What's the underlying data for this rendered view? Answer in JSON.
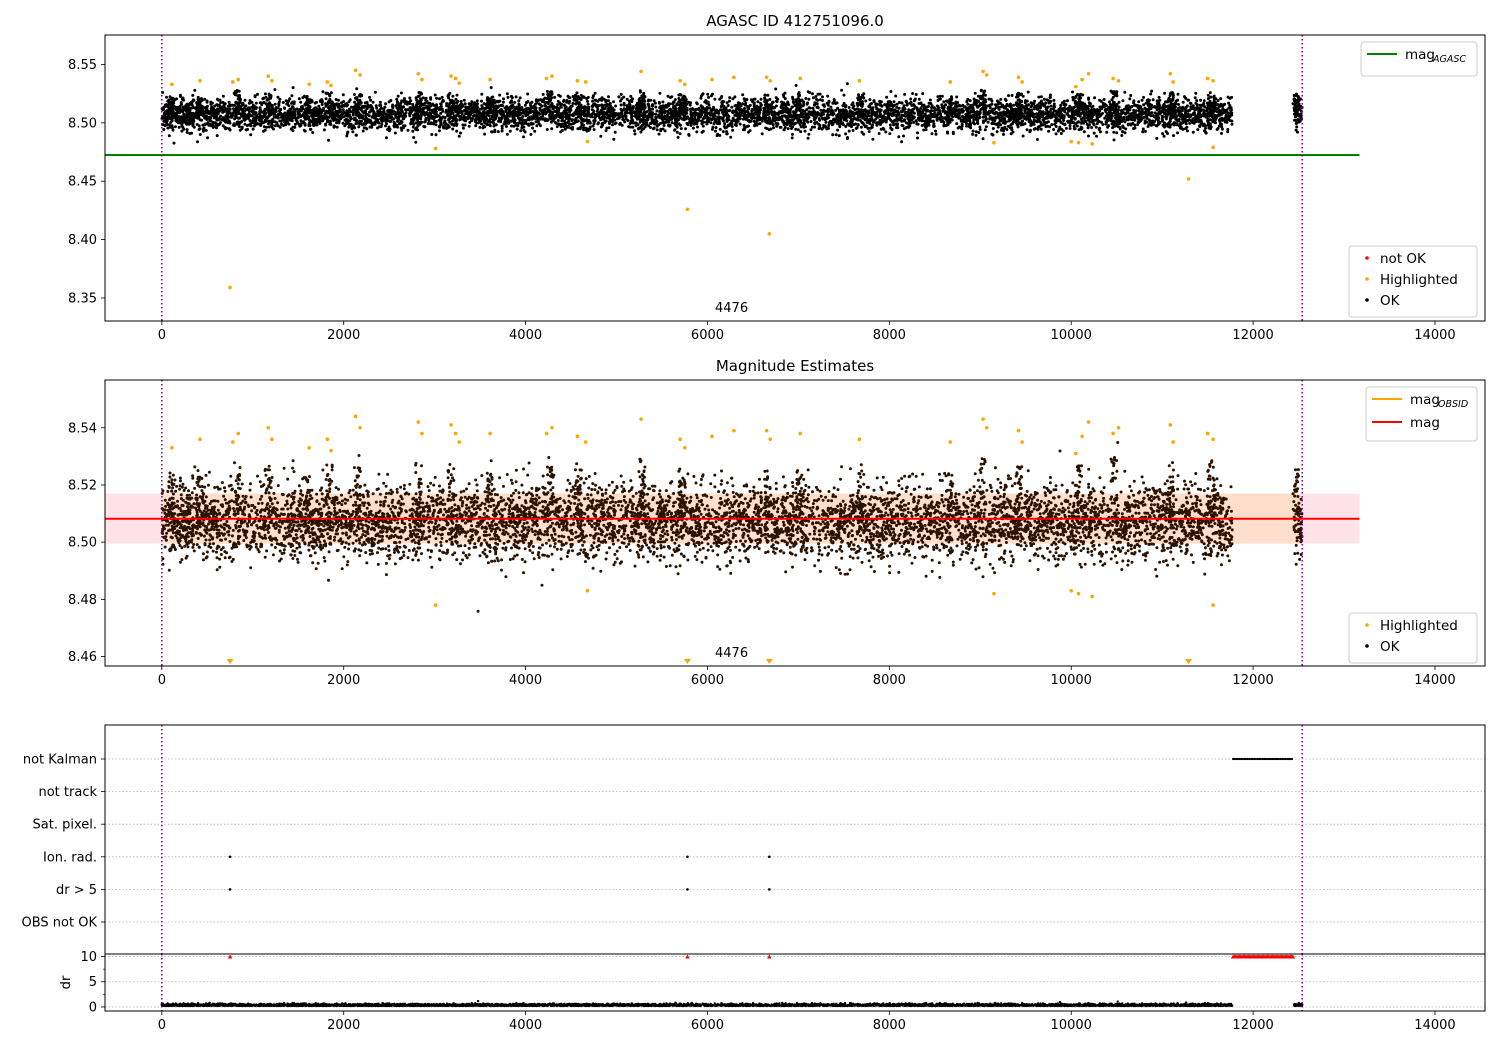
{
  "colors": {
    "ok": "#000000",
    "highlighted": "#ffa500",
    "not_ok": "#ff0000",
    "mag_agasc": "#008000",
    "mag_obsid": "#ffa500",
    "mag": "#ff0000",
    "band_outer": "#ffc0cb",
    "band_inner": "#ffdab9",
    "period_marker": "#800080"
  },
  "chart_data": [
    {
      "type": "scatter",
      "title": "AGASC ID 412751096.0",
      "xlabel": "",
      "ylabel": "",
      "xlim": [
        -625,
        14550
      ],
      "ylim": [
        8.3303,
        8.5752
      ],
      "xticks": [
        0,
        2000,
        4000,
        6000,
        8000,
        10000,
        12000,
        14000
      ],
      "yticks": [
        8.35,
        8.4,
        8.45,
        8.5,
        8.55
      ],
      "ytick_labels": [
        "8.35",
        "8.40",
        "8.45",
        "8.50",
        "8.55"
      ],
      "grid": false,
      "annotation": "4476",
      "annotation_x": 6265,
      "period_markers_x": [
        0,
        12540
      ],
      "legend_upper": [
        {
          "label": "mag",
          "sub": "AGASC",
          "kind": "line",
          "color_key": "mag_agasc"
        }
      ],
      "legend_lower": [
        {
          "label": "not OK",
          "kind": "dot",
          "color_key": "not_ok"
        },
        {
          "label": "Highlighted",
          "kind": "dot",
          "color_key": "highlighted"
        },
        {
          "label": "OK",
          "kind": "dot",
          "color_key": "ok"
        }
      ],
      "legend_upper_position": "upper right",
      "legend_lower_position": "lower right",
      "hlines": [
        {
          "y": 8.4724,
          "x_start": -625,
          "x_end": 13170,
          "color_key": "mag_agasc"
        }
      ],
      "ok_band": {
        "center": 8.507,
        "spread": 0.007,
        "x_ranges": [
          [
            0,
            11770
          ],
          [
            12450,
            12540
          ]
        ]
      },
      "ok_spikes": [
        [
          110,
          8.523
        ],
        [
          420,
          8.522
        ],
        [
          830,
          8.528
        ],
        [
          1170,
          8.525
        ],
        [
          1600,
          8.524
        ],
        [
          1840,
          8.527
        ],
        [
          2150,
          8.526
        ],
        [
          2820,
          8.528
        ],
        [
          3180,
          8.526
        ],
        [
          3610,
          8.524
        ],
        [
          4270,
          8.528
        ],
        [
          4580,
          8.526
        ],
        [
          5280,
          8.528
        ],
        [
          5720,
          8.525
        ],
        [
          6660,
          8.524
        ],
        [
          7010,
          8.526
        ],
        [
          7680,
          8.526
        ],
        [
          8670,
          8.523
        ],
        [
          9030,
          8.528
        ],
        [
          9430,
          8.526
        ],
        [
          10080,
          8.526
        ],
        [
          10470,
          8.528
        ],
        [
          11090,
          8.526
        ],
        [
          11540,
          8.527
        ],
        [
          12470,
          8.525
        ]
      ],
      "highlighted_points": [
        [
          110,
          8.533
        ],
        [
          420,
          8.536
        ],
        [
          780,
          8.535
        ],
        [
          840,
          8.537
        ],
        [
          1170,
          8.54
        ],
        [
          1210,
          8.536
        ],
        [
          1620,
          8.533
        ],
        [
          1820,
          8.535
        ],
        [
          1860,
          8.532
        ],
        [
          2130,
          8.545
        ],
        [
          2180,
          8.541
        ],
        [
          2820,
          8.542
        ],
        [
          2860,
          8.537
        ],
        [
          3180,
          8.54
        ],
        [
          3230,
          8.538
        ],
        [
          3270,
          8.534
        ],
        [
          3610,
          8.537
        ],
        [
          4230,
          8.538
        ],
        [
          4290,
          8.54
        ],
        [
          4570,
          8.536
        ],
        [
          4660,
          8.535
        ],
        [
          5270,
          8.544
        ],
        [
          5700,
          8.536
        ],
        [
          5750,
          8.533
        ],
        [
          6050,
          8.537
        ],
        [
          6290,
          8.539
        ],
        [
          6650,
          8.539
        ],
        [
          6690,
          8.536
        ],
        [
          7020,
          8.538
        ],
        [
          7670,
          8.536
        ],
        [
          8670,
          8.535
        ],
        [
          9030,
          8.544
        ],
        [
          9070,
          8.541
        ],
        [
          9420,
          8.539
        ],
        [
          9460,
          8.535
        ],
        [
          10050,
          8.531
        ],
        [
          10120,
          8.537
        ],
        [
          10190,
          8.542
        ],
        [
          10460,
          8.538
        ],
        [
          10520,
          8.536
        ],
        [
          11090,
          8.542
        ],
        [
          11120,
          8.535
        ],
        [
          11500,
          8.538
        ],
        [
          11560,
          8.536
        ],
        [
          3010,
          8.478
        ],
        [
          4680,
          8.484
        ],
        [
          9150,
          8.483
        ],
        [
          10000,
          8.484
        ],
        [
          10080,
          8.483
        ],
        [
          10230,
          8.482
        ],
        [
          11560,
          8.479
        ],
        [
          750,
          8.359
        ],
        [
          5780,
          8.426
        ],
        [
          6680,
          8.405
        ],
        [
          11290,
          8.452
        ]
      ],
      "not_ok_points": []
    },
    {
      "type": "scatter",
      "title": "Magnitude Estimates",
      "xlabel": "",
      "ylabel": "",
      "xlim": [
        -625,
        14550
      ],
      "ylim": [
        8.4567,
        8.5567
      ],
      "xticks": [
        0,
        2000,
        4000,
        6000,
        8000,
        10000,
        12000,
        14000
      ],
      "yticks": [
        8.46,
        8.48,
        8.5,
        8.52,
        8.54
      ],
      "ytick_labels": [
        "8.46",
        "8.48",
        "8.50",
        "8.52",
        "8.54"
      ],
      "grid": false,
      "annotation": "4476",
      "annotation_x": 6265,
      "period_markers_x": [
        0,
        12540
      ],
      "legend_upper": [
        {
          "label": "mag",
          "sub": "OBSID",
          "kind": "line",
          "color_key": "mag_obsid"
        },
        {
          "label": "mag",
          "sub": "",
          "kind": "line",
          "color_key": "mag"
        }
      ],
      "legend_lower": [
        {
          "label": "Highlighted",
          "kind": "dot",
          "color_key": "highlighted"
        },
        {
          "label": "OK",
          "kind": "dot",
          "color_key": "ok"
        }
      ],
      "legend_upper_position": "upper right",
      "legend_lower_position": "lower right",
      "hlines": [
        {
          "y": 8.5082,
          "x_start": -625,
          "x_end": 13170,
          "color_key": "mag"
        }
      ],
      "band_outer": {
        "y0": 8.4995,
        "y1": 8.517,
        "x0": -625,
        "x1": 13170
      },
      "band_inner": {
        "y0": 8.4995,
        "y1": 8.517,
        "x0": 0,
        "x1": 12540
      },
      "ok_band": {
        "center": 8.507,
        "spread": 0.0065,
        "x_ranges": [
          [
            0,
            11770
          ],
          [
            12450,
            12540
          ]
        ]
      },
      "ok_spikes": [
        [
          110,
          8.525
        ],
        [
          420,
          8.523
        ],
        [
          830,
          8.528
        ],
        [
          1170,
          8.527
        ],
        [
          1600,
          8.524
        ],
        [
          1840,
          8.529
        ],
        [
          2150,
          8.528
        ],
        [
          2820,
          8.53
        ],
        [
          3180,
          8.528
        ],
        [
          3610,
          8.525
        ],
        [
          4270,
          8.53
        ],
        [
          4580,
          8.528
        ],
        [
          5280,
          8.53
        ],
        [
          5720,
          8.526
        ],
        [
          6660,
          8.525
        ],
        [
          7010,
          8.527
        ],
        [
          7680,
          8.528
        ],
        [
          8670,
          8.524
        ],
        [
          9030,
          8.53
        ],
        [
          9430,
          8.528
        ],
        [
          10080,
          8.528
        ],
        [
          10470,
          8.53
        ],
        [
          11090,
          8.528
        ],
        [
          11540,
          8.529
        ],
        [
          12470,
          8.526
        ]
      ],
      "highlighted_points": [
        [
          110,
          8.533
        ],
        [
          420,
          8.536
        ],
        [
          780,
          8.535
        ],
        [
          840,
          8.538
        ],
        [
          1170,
          8.54
        ],
        [
          1210,
          8.536
        ],
        [
          1620,
          8.533
        ],
        [
          1820,
          8.536
        ],
        [
          1860,
          8.532
        ],
        [
          2130,
          8.544
        ],
        [
          2180,
          8.54
        ],
        [
          2820,
          8.542
        ],
        [
          2860,
          8.538
        ],
        [
          3180,
          8.541
        ],
        [
          3230,
          8.538
        ],
        [
          3270,
          8.535
        ],
        [
          3610,
          8.538
        ],
        [
          4230,
          8.538
        ],
        [
          4290,
          8.54
        ],
        [
          4570,
          8.537
        ],
        [
          4660,
          8.535
        ],
        [
          5270,
          8.543
        ],
        [
          5700,
          8.536
        ],
        [
          5750,
          8.533
        ],
        [
          6050,
          8.537
        ],
        [
          6290,
          8.539
        ],
        [
          6650,
          8.539
        ],
        [
          6690,
          8.536
        ],
        [
          7020,
          8.538
        ],
        [
          7670,
          8.536
        ],
        [
          8670,
          8.535
        ],
        [
          9030,
          8.543
        ],
        [
          9070,
          8.54
        ],
        [
          9420,
          8.539
        ],
        [
          9460,
          8.535
        ],
        [
          10050,
          8.531
        ],
        [
          10120,
          8.537
        ],
        [
          10190,
          8.542
        ],
        [
          10460,
          8.538
        ],
        [
          10520,
          8.54
        ],
        [
          11090,
          8.541
        ],
        [
          11120,
          8.535
        ],
        [
          11500,
          8.538
        ],
        [
          11560,
          8.536
        ],
        [
          3010,
          8.478
        ],
        [
          4680,
          8.483
        ],
        [
          9150,
          8.482
        ],
        [
          10000,
          8.483
        ],
        [
          10080,
          8.482
        ],
        [
          10230,
          8.481
        ],
        [
          11560,
          8.478
        ]
      ],
      "offscale_markers_x": [
        750,
        5780,
        6680,
        11290
      ],
      "not_ok_points": []
    },
    {
      "type": "scatter",
      "title": "",
      "xlabel": "",
      "ylabel": "",
      "xlim": [
        -625,
        14550
      ],
      "xticks": [
        0,
        2000,
        4000,
        6000,
        8000,
        10000,
        12000,
        14000
      ],
      "period_markers_x": [
        0,
        12540
      ],
      "flag_rows": [
        "not Kalman",
        "not track",
        "Sat. pixel.",
        "Ion. rad.",
        "dr > 5",
        "OBS not OK"
      ],
      "flag_points": {
        "not Kalman": {
          "ranges": [
            [
              11780,
              12440
            ]
          ],
          "points": []
        },
        "not track": {
          "ranges": [],
          "points": []
        },
        "Sat. pixel.": {
          "ranges": [],
          "points": []
        },
        "Ion. rad.": {
          "ranges": [],
          "points": [
            750,
            5780,
            6680
          ]
        },
        "dr > 5": {
          "ranges": [],
          "points": [
            750,
            5780,
            6680
          ]
        },
        "OBS not OK": {
          "ranges": [],
          "points": []
        }
      }
    },
    {
      "type": "scatter",
      "title": "",
      "xlabel": "",
      "ylabel": "dr",
      "xlim": [
        -625,
        14550
      ],
      "ylim": [
        -0.8,
        10.5
      ],
      "yticks": [
        0,
        5,
        10
      ],
      "ytick_labels": [
        "0",
        "5",
        "10"
      ],
      "minor_yticks": [
        2.5,
        7.5
      ],
      "xticks": [
        0,
        2000,
        4000,
        6000,
        8000,
        10000,
        12000,
        14000
      ],
      "grid": true,
      "period_markers_x": [
        0,
        12540
      ],
      "ok_band": {
        "center": 0.2,
        "spread": 0.2,
        "x_ranges": [
          [
            0,
            11770
          ],
          [
            12450,
            12540
          ]
        ]
      },
      "not_ok_points": [
        [
          750,
          10
        ],
        [
          5780,
          10
        ],
        [
          6680,
          10
        ]
      ],
      "not_ok_ranges": [
        [
          11780,
          12440,
          10
        ]
      ]
    }
  ]
}
